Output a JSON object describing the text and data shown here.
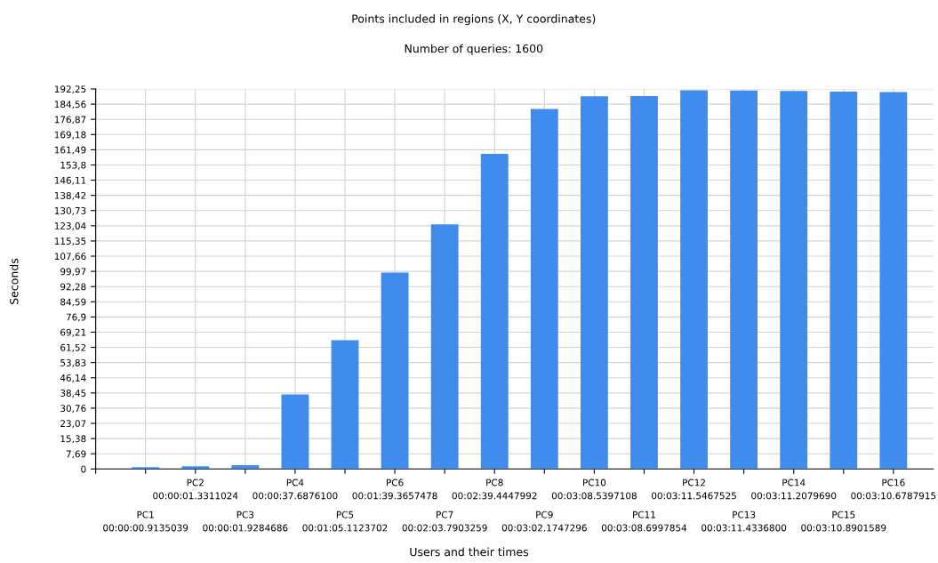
{
  "chart_data": {
    "type": "bar",
    "title": "Points included in regions (X, Y coordinates)",
    "subtitle": "Number of queries: 1600",
    "xlabel": "Users and their times",
    "ylabel": "Seconds",
    "categories": [
      "PC1\n00:00:00.9135039",
      "PC2\n00:00:01.3311024",
      "PC3\n00:00:01.9284686",
      "PC4\n00:00:37.6876100",
      "PC5\n00:01:05.1123702",
      "PC6\n00:01:39.3657478",
      "PC7\n00:02:03.7903259",
      "PC8\n00:02:39.4447992",
      "PC9\n00:03:02.1747296",
      "PC10\n00:03:08.5397108",
      "PC11\n00:03:08.6997854",
      "PC12\n00:03:11.5467525",
      "PC13\n00:03:11.4336800",
      "PC14\n00:03:11.2079690",
      "PC15\n00:03:10.8901589",
      "PC16\n00:03:10.6787915"
    ],
    "values": [
      0.91,
      1.33,
      1.93,
      37.69,
      65.11,
      99.37,
      123.79,
      159.44,
      182.17,
      188.54,
      188.7,
      191.55,
      191.43,
      191.21,
      190.89,
      190.68
    ],
    "color": "#3f8ced",
    "ylim": [
      0,
      192.25
    ],
    "yticks": [
      {
        "value": 0,
        "label": "0"
      },
      {
        "value": 7.69,
        "label": "7,69"
      },
      {
        "value": 15.38,
        "label": "15,38"
      },
      {
        "value": 23.07,
        "label": "23,07"
      },
      {
        "value": 30.76,
        "label": "30,76"
      },
      {
        "value": 38.45,
        "label": "38,45"
      },
      {
        "value": 46.14,
        "label": "46,14"
      },
      {
        "value": 53.83,
        "label": "53,83"
      },
      {
        "value": 61.52,
        "label": "61,52"
      },
      {
        "value": 69.21,
        "label": "69,21"
      },
      {
        "value": 76.9,
        "label": "76,9"
      },
      {
        "value": 84.59,
        "label": "84,59"
      },
      {
        "value": 92.28,
        "label": "92,28"
      },
      {
        "value": 99.97,
        "label": "99,97"
      },
      {
        "value": 107.66,
        "label": "107,66"
      },
      {
        "value": 115.35,
        "label": "115,35"
      },
      {
        "value": 123.04,
        "label": "123,04"
      },
      {
        "value": 130.73,
        "label": "130,73"
      },
      {
        "value": 138.42,
        "label": "138,42"
      },
      {
        "value": 146.11,
        "label": "146,11"
      },
      {
        "value": 153.8,
        "label": "153,8"
      },
      {
        "value": 161.49,
        "label": "161,49"
      },
      {
        "value": 169.18,
        "label": "169,18"
      },
      {
        "value": 176.87,
        "label": "176,87"
      },
      {
        "value": 184.56,
        "label": "184,56"
      },
      {
        "value": 192.25,
        "label": "192,25"
      }
    ],
    "grid": true
  }
}
